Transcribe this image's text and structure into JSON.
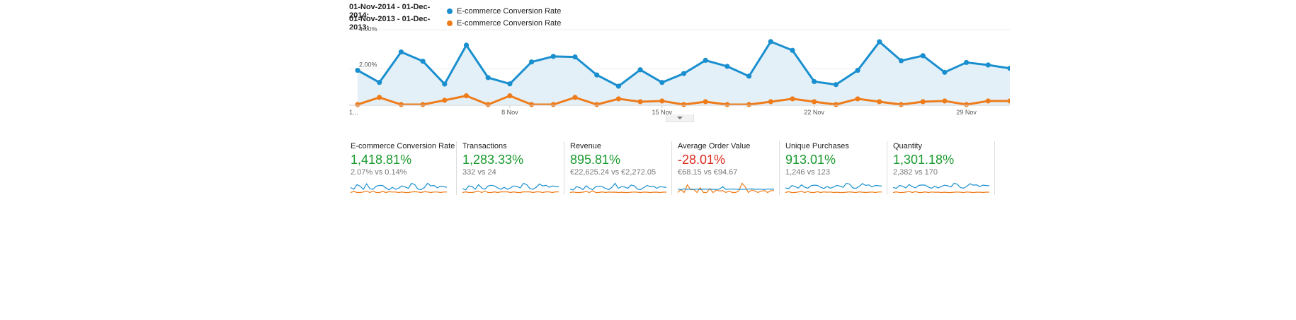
{
  "legend": [
    {
      "range": "01-Nov-2014 - 01-Dec-2014:",
      "metric": "E-commerce Conversion Rate",
      "color": "#1a8fcf"
    },
    {
      "range": "01-Nov-2013 - 01-Dec-2013:",
      "metric": "E-commerce Conversion Rate",
      "color": "#ef7c1a"
    }
  ],
  "chart_data": {
    "type": "line",
    "title": "",
    "xlabel": "",
    "ylabel": "",
    "y_ticks": [
      "4.00%",
      "2.00%"
    ],
    "ylim": [
      0,
      4.2
    ],
    "x": [
      "1 Nov",
      "2 Nov",
      "3 Nov",
      "4 Nov",
      "5 Nov",
      "6 Nov",
      "7 Nov",
      "8 Nov",
      "9 Nov",
      "10 Nov",
      "11 Nov",
      "12 Nov",
      "13 Nov",
      "14 Nov",
      "15 Nov",
      "16 Nov",
      "17 Nov",
      "18 Nov",
      "19 Nov",
      "20 Nov",
      "21 Nov",
      "22 Nov",
      "23 Nov",
      "24 Nov",
      "25 Nov",
      "26 Nov",
      "27 Nov",
      "28 Nov",
      "29 Nov",
      "30 Nov",
      "1 Dec"
    ],
    "x_tick_labels": [
      {
        "index": 0,
        "label": "1..."
      },
      {
        "index": 7,
        "label": "8 Nov"
      },
      {
        "index": 14,
        "label": "15 Nov"
      },
      {
        "index": 21,
        "label": "22 Nov"
      },
      {
        "index": 28,
        "label": "29 Nov"
      }
    ],
    "series": [
      {
        "color": "#1a8fcf",
        "fill": true,
        "values": [
          1.92,
          1.24,
          2.95,
          2.43,
          1.15,
          3.33,
          1.51,
          1.16,
          2.39,
          2.7,
          2.67,
          1.66,
          1.03,
          1.95,
          1.24,
          1.74,
          2.48,
          2.14,
          1.59,
          3.53,
          3.04,
          1.29,
          1.12,
          1.92,
          3.52,
          2.46,
          2.74,
          1.81,
          2.36,
          2.22,
          2.03
        ]
      },
      {
        "color": "#ef7c1a",
        "fill": false,
        "values": [
          0.0,
          0.4,
          0.0,
          0.0,
          0.24,
          0.49,
          0.0,
          0.49,
          0.0,
          0.0,
          0.4,
          0.0,
          0.32,
          0.16,
          0.2,
          0.0,
          0.16,
          0.0,
          0.0,
          0.16,
          0.32,
          0.16,
          0.0,
          0.32,
          0.16,
          0.0,
          0.16,
          0.2,
          0.0,
          0.2,
          0.2
        ]
      }
    ]
  },
  "scorecards": [
    {
      "title": "E-commerce Conversion Rate",
      "change": "1,418.81%",
      "direction": "up",
      "compare": "2.07% vs 0.14%",
      "spark_current": [
        1.9,
        1.2,
        3.0,
        2.4,
        1.2,
        3.3,
        1.5,
        1.2,
        2.4,
        2.7,
        2.7,
        1.7,
        1.0,
        2.0,
        1.2,
        1.7,
        2.5,
        2.1,
        1.6,
        3.5,
        3.0,
        1.3,
        1.1,
        1.9,
        3.5,
        2.5,
        2.7,
        1.8,
        2.4,
        2.2,
        2.0
      ],
      "spark_previous": [
        0,
        0.4,
        0,
        0,
        0.2,
        0.5,
        0,
        0.5,
        0,
        0,
        0.4,
        0,
        0.3,
        0.2,
        0.2,
        0,
        0.2,
        0,
        0,
        0.2,
        0.3,
        0.2,
        0,
        0.3,
        0.2,
        0,
        0.2,
        0.2,
        0,
        0.2,
        0.2
      ]
    },
    {
      "title": "Transactions",
      "change": "1,283.33%",
      "direction": "up",
      "compare": "332 vs 24",
      "spark_current": [
        6,
        4,
        10,
        9,
        5,
        12,
        7,
        5,
        10,
        11,
        10,
        7,
        5,
        8,
        5,
        7,
        10,
        9,
        7,
        14,
        12,
        6,
        5,
        8,
        13,
        10,
        11,
        8,
        10,
        9,
        9
      ],
      "spark_previous": [
        0,
        1,
        0,
        0,
        1,
        2,
        0,
        2,
        0,
        0,
        1,
        0,
        1,
        1,
        1,
        0,
        1,
        0,
        0,
        1,
        1,
        1,
        0,
        1,
        1,
        0,
        1,
        1,
        0,
        1,
        1
      ]
    },
    {
      "title": "Revenue",
      "change": "895.81%",
      "direction": "up",
      "compare": "€22,625.24 vs €2,272.05",
      "spark_current": [
        400,
        300,
        700,
        600,
        350,
        800,
        500,
        350,
        700,
        750,
        700,
        500,
        350,
        600,
        1100,
        500,
        700,
        650,
        500,
        900,
        800,
        400,
        350,
        600,
        850,
        700,
        750,
        500,
        700,
        650,
        600
      ],
      "spark_previous": [
        0,
        60,
        0,
        0,
        40,
        120,
        0,
        200,
        0,
        0,
        80,
        0,
        50,
        30,
        40,
        0,
        30,
        0,
        0,
        30,
        60,
        30,
        0,
        50,
        30,
        0,
        30,
        40,
        0,
        40,
        40
      ]
    },
    {
      "title": "Average Order Value",
      "change": "-28.01%",
      "direction": "down",
      "compare": "€68.15 vs €94.67",
      "spark_current": [
        70,
        60,
        75,
        65,
        70,
        65,
        70,
        60,
        72,
        68,
        70,
        66,
        62,
        70,
        120,
        64,
        70,
        72,
        68,
        65,
        66,
        70,
        68,
        74,
        66,
        70,
        68,
        62,
        70,
        72,
        66
      ],
      "spark_previous": [
        0,
        60,
        0,
        160,
        60,
        60,
        0,
        100,
        0,
        0,
        80,
        0,
        50,
        30,
        40,
        0,
        30,
        0,
        0,
        30,
        190,
        120,
        0,
        50,
        30,
        0,
        30,
        40,
        0,
        40,
        40
      ]
    },
    {
      "title": "Unique Purchases",
      "change": "913.01%",
      "direction": "up",
      "compare": "1,246 vs 123",
      "spark_current": [
        30,
        25,
        45,
        40,
        28,
        50,
        35,
        28,
        45,
        48,
        46,
        34,
        26,
        40,
        28,
        36,
        46,
        42,
        34,
        60,
        55,
        30,
        27,
        40,
        58,
        46,
        50,
        36,
        46,
        44,
        42
      ],
      "spark_previous": [
        0,
        5,
        0,
        0,
        3,
        8,
        0,
        6,
        0,
        0,
        5,
        0,
        4,
        2,
        3,
        0,
        2,
        0,
        0,
        2,
        4,
        2,
        0,
        4,
        2,
        0,
        2,
        3,
        0,
        3,
        3
      ]
    },
    {
      "title": "Quantity",
      "change": "1,301.18%",
      "direction": "up",
      "compare": "2,382 vs 170",
      "spark_current": [
        60,
        50,
        85,
        75,
        55,
        95,
        70,
        55,
        85,
        90,
        88,
        65,
        50,
        75,
        55,
        70,
        88,
        80,
        65,
        110,
        100,
        58,
        52,
        75,
        105,
        88,
        92,
        70,
        88,
        84,
        80
      ],
      "spark_previous": [
        0,
        8,
        0,
        0,
        5,
        12,
        0,
        10,
        0,
        0,
        8,
        0,
        6,
        3,
        4,
        0,
        3,
        0,
        0,
        3,
        6,
        3,
        0,
        6,
        3,
        0,
        3,
        4,
        0,
        4,
        4
      ]
    }
  ]
}
